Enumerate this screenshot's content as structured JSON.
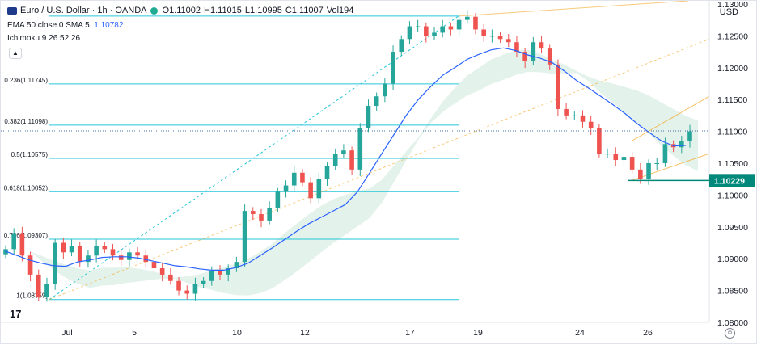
{
  "header": {
    "symbol": "Euro / U.S. Dollar · 1h · OANDA",
    "ohlc": [
      {
        "label": "O",
        "value": "1.11002"
      },
      {
        "label": "H",
        "value": "1.11015"
      },
      {
        "label": "L",
        "value": "1.10995"
      },
      {
        "label": "C",
        "value": "1.11007"
      },
      {
        "label": "Vol",
        "value": "194"
      }
    ],
    "ema_label": "EMA 50 close 0 SMA 5",
    "ema_value": "1.10782",
    "ichimoku_label": "Ichimoku 9 26 52 26",
    "currency": "USD",
    "collapse_icon": "chevron-up-icon",
    "settings_icon": "gear-icon",
    "logo_text": "17"
  },
  "colors": {
    "up": "#26a69a",
    "down": "#ef5350",
    "ema": "#2962ff",
    "fib": "#26c6da",
    "pitchfork": "#f5a623",
    "cloud_green": "#dcefe6",
    "cloud_red": "#fbe3e1",
    "price_line": "#4a6fa5",
    "tag": "#00897b"
  },
  "chart_data": {
    "type": "candlestick",
    "title": "Euro / U.S. Dollar · 1h · OANDA",
    "ylim": [
      1.08,
      1.1305
    ],
    "y_ticks": [
      "1.13000",
      "1.12500",
      "1.12000",
      "1.11500",
      "1.11000",
      "1.10500",
      "1.10000",
      "1.09500",
      "1.09000",
      "1.08500",
      "1.08000"
    ],
    "x_ticks": [
      "Jul",
      "5",
      "10",
      "12",
      "17",
      "19",
      "24",
      "26"
    ],
    "current_price": 1.11007,
    "price_tag": "1.10229",
    "price_tag_value": 1.10229,
    "fib_levels": [
      {
        "label": "0.236(1.11745)",
        "value": 1.11745
      },
      {
        "label": "0.382(1.11098)",
        "value": 1.11098
      },
      {
        "label": "0.5(1.10575)",
        "value": 1.10575
      },
      {
        "label": "0.618(1.10052)",
        "value": 1.10052
      },
      {
        "label": "0.786(1.09307)",
        "value": 1.09307
      },
      {
        "label": "1(1.08359)",
        "value": 1.08359
      }
    ],
    "fib_top": 1.1281,
    "swing_close": [
      1.0915,
      1.094,
      1.0905,
      1.0875,
      1.084,
      1.086,
      1.0925,
      1.091,
      1.092,
      1.0895,
      1.0905,
      1.092,
      1.0915,
      1.0905,
      1.0898,
      1.091,
      1.0905,
      1.0895,
      1.0885,
      1.0875,
      1.0865,
      1.085,
      1.0845,
      1.086,
      1.0865,
      1.088,
      1.0875,
      1.0885,
      1.0895,
      1.0975,
      1.097,
      1.096,
      1.098,
      1.1005,
      1.1015,
      1.1035,
      1.102,
      1.0995,
      1.1025,
      1.1045,
      1.1065,
      1.107,
      1.104,
      1.1105,
      1.114,
      1.1155,
      1.1175,
      1.1225,
      1.1245,
      1.1265,
      1.1265,
      1.125,
      1.1255,
      1.1265,
      1.126,
      1.1275,
      1.128,
      1.126,
      1.125,
      1.125,
      1.1245,
      1.124,
      1.1225,
      1.121,
      1.124,
      1.123,
      1.1205,
      1.1135,
      1.1125,
      1.1125,
      1.1115,
      1.1105,
      1.1065,
      1.1065,
      1.1055,
      1.106,
      1.104,
      1.1025,
      1.105,
      1.105,
      1.108,
      1.1075,
      1.1085,
      1.11
    ],
    "ema_values": [
      1.0912,
      1.0905,
      1.0898,
      1.0893,
      1.0889,
      1.0888,
      1.0895,
      1.0898,
      1.0902,
      1.0903,
      1.0903,
      1.0901,
      1.0897,
      1.0893,
      1.0889,
      1.0887,
      1.0884,
      1.0882,
      1.0882,
      1.0886,
      1.0893,
      1.0905,
      1.0917,
      1.093,
      1.0943,
      1.0955,
      1.0965,
      1.0975,
      1.0985,
      1.1005,
      1.1035,
      1.1065,
      1.1095,
      1.1125,
      1.115,
      1.117,
      1.1188,
      1.12,
      1.1213,
      1.1221,
      1.1228,
      1.1231,
      1.1227,
      1.122,
      1.1215,
      1.1208,
      1.1195,
      1.118,
      1.1168,
      1.1155,
      1.1142,
      1.1128,
      1.1112,
      1.1098,
      1.1085,
      1.1077,
      1.1078
    ]
  }
}
